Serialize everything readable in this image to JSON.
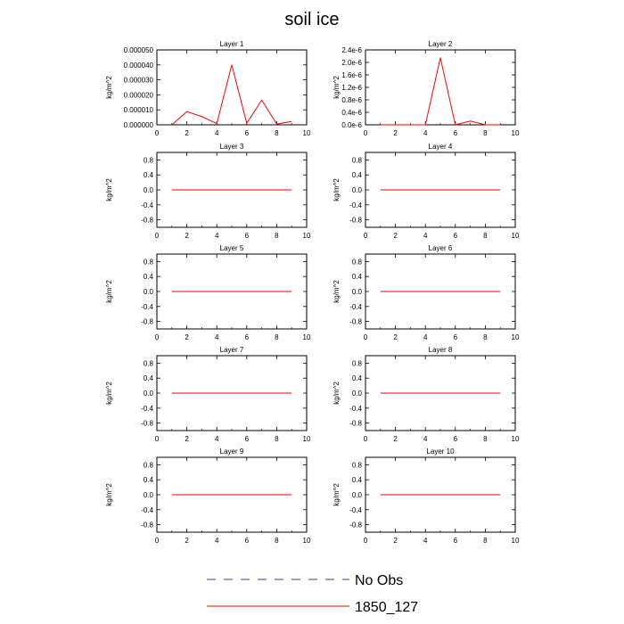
{
  "title": "soil ice",
  "chart_data": [
    {
      "type": "line",
      "title": "Layer 1",
      "ylabel": "kg/m^2",
      "xlim": [
        0,
        10
      ],
      "xticks": [
        0,
        2,
        4,
        6,
        8,
        10
      ],
      "ylim": [
        0,
        5e-05
      ],
      "yticks": [
        0,
        1e-05,
        2e-05,
        3e-05,
        4e-05,
        5e-05
      ],
      "ytick_labels": [
        "0.000000",
        "0.000010",
        "0.000020",
        "0.000030",
        "0.000040",
        "0.000050"
      ],
      "series": [
        {
          "name": "1850_127",
          "color": "#ff0000",
          "x": [
            1,
            2,
            3,
            4,
            5,
            6,
            7,
            8,
            9
          ],
          "y": [
            0,
            8.8e-06,
            5.5e-06,
            8e-07,
            4e-05,
            1e-06,
            1.65e-05,
            5e-07,
            2.2e-06
          ]
        }
      ]
    },
    {
      "type": "line",
      "title": "Layer 2",
      "ylabel": "kg/m^2",
      "xlim": [
        0,
        10
      ],
      "xticks": [
        0,
        2,
        4,
        6,
        8,
        10
      ],
      "ylim": [
        0,
        2.4e-06
      ],
      "yticks": [
        0,
        4e-07,
        8e-07,
        1.2e-06,
        1.6e-06,
        2e-06,
        2.4e-06
      ],
      "ytick_labels": [
        "0.0e-6",
        "0.4e-6",
        "0.8e-6",
        "1.2e-6",
        "1.6e-6",
        "2.0e-6",
        "2.4e-6"
      ],
      "series": [
        {
          "name": "1850_127",
          "color": "#ff0000",
          "x": [
            1,
            2,
            3,
            4,
            5,
            6,
            7,
            8,
            9
          ],
          "y": [
            0,
            0,
            0,
            0,
            2.15e-06,
            0,
            1.2e-07,
            0,
            0
          ]
        }
      ]
    },
    {
      "type": "line",
      "title": "Layer 3",
      "ylabel": "kg/m^2",
      "xlim": [
        0,
        10
      ],
      "xticks": [
        0,
        2,
        4,
        6,
        8,
        10
      ],
      "ylim": [
        -1,
        1
      ],
      "yticks": [
        -0.8,
        -0.4,
        0,
        0.4,
        0.8
      ],
      "ytick_labels": [
        "-0.8",
        "-0.4",
        "0.0",
        "0.4",
        "0.8"
      ],
      "series": [
        {
          "name": "1850_127",
          "color": "#ff0000",
          "x": [
            1,
            2,
            3,
            4,
            5,
            6,
            7,
            8,
            9
          ],
          "y": [
            0,
            0,
            0,
            0,
            0,
            0,
            0,
            0,
            0
          ]
        }
      ]
    },
    {
      "type": "line",
      "title": "Layer 4",
      "ylabel": "kg/m^2",
      "xlim": [
        0,
        10
      ],
      "xticks": [
        0,
        2,
        4,
        6,
        8,
        10
      ],
      "ylim": [
        -1,
        1
      ],
      "yticks": [
        -0.8,
        -0.4,
        0,
        0.4,
        0.8
      ],
      "ytick_labels": [
        "-0.8",
        "-0.4",
        "0.0",
        "0.4",
        "0.8"
      ],
      "series": [
        {
          "name": "1850_127",
          "color": "#ff0000",
          "x": [
            1,
            2,
            3,
            4,
            5,
            6,
            7,
            8,
            9
          ],
          "y": [
            0,
            0,
            0,
            0,
            0,
            0,
            0,
            0,
            0
          ]
        }
      ]
    },
    {
      "type": "line",
      "title": "Layer 5",
      "ylabel": "kg/m^2",
      "xlim": [
        0,
        10
      ],
      "xticks": [
        0,
        2,
        4,
        6,
        8,
        10
      ],
      "ylim": [
        -1,
        1
      ],
      "yticks": [
        -0.8,
        -0.4,
        0,
        0.4,
        0.8
      ],
      "ytick_labels": [
        "-0.8",
        "-0.4",
        "0.0",
        "0.4",
        "0.8"
      ],
      "series": [
        {
          "name": "1850_127",
          "color": "#ff0000",
          "x": [
            1,
            2,
            3,
            4,
            5,
            6,
            7,
            8,
            9
          ],
          "y": [
            0,
            0,
            0,
            0,
            0,
            0,
            0,
            0,
            0
          ]
        }
      ]
    },
    {
      "type": "line",
      "title": "Layer 6",
      "ylabel": "kg/m^2",
      "xlim": [
        0,
        10
      ],
      "xticks": [
        0,
        2,
        4,
        6,
        8,
        10
      ],
      "ylim": [
        -1,
        1
      ],
      "yticks": [
        -0.8,
        -0.4,
        0,
        0.4,
        0.8
      ],
      "ytick_labels": [
        "-0.8",
        "-0.4",
        "0.0",
        "0.4",
        "0.8"
      ],
      "series": [
        {
          "name": "1850_127",
          "color": "#ff0000",
          "x": [
            1,
            2,
            3,
            4,
            5,
            6,
            7,
            8,
            9
          ],
          "y": [
            0,
            0,
            0,
            0,
            0,
            0,
            0,
            0,
            0
          ]
        }
      ]
    },
    {
      "type": "line",
      "title": "Layer 7",
      "ylabel": "kg/m^2",
      "xlim": [
        0,
        10
      ],
      "xticks": [
        0,
        2,
        4,
        6,
        8,
        10
      ],
      "ylim": [
        -1,
        1
      ],
      "yticks": [
        -0.8,
        -0.4,
        0,
        0.4,
        0.8
      ],
      "ytick_labels": [
        "-0.8",
        "-0.4",
        "0.0",
        "0.4",
        "0.8"
      ],
      "series": [
        {
          "name": "1850_127",
          "color": "#ff0000",
          "x": [
            1,
            2,
            3,
            4,
            5,
            6,
            7,
            8,
            9
          ],
          "y": [
            0,
            0,
            0,
            0,
            0,
            0,
            0,
            0,
            0
          ]
        }
      ]
    },
    {
      "type": "line",
      "title": "Layer 8",
      "ylabel": "kg/m^2",
      "xlim": [
        0,
        10
      ],
      "xticks": [
        0,
        2,
        4,
        6,
        8,
        10
      ],
      "ylim": [
        -1,
        1
      ],
      "yticks": [
        -0.8,
        -0.4,
        0,
        0.4,
        0.8
      ],
      "ytick_labels": [
        "-0.8",
        "-0.4",
        "0.0",
        "0.4",
        "0.8"
      ],
      "series": [
        {
          "name": "1850_127",
          "color": "#ff0000",
          "x": [
            1,
            2,
            3,
            4,
            5,
            6,
            7,
            8,
            9
          ],
          "y": [
            0,
            0,
            0,
            0,
            0,
            0,
            0,
            0,
            0
          ]
        }
      ]
    },
    {
      "type": "line",
      "title": "Layer 9",
      "ylabel": "kg/m^2",
      "xlim": [
        0,
        10
      ],
      "xticks": [
        0,
        2,
        4,
        6,
        8,
        10
      ],
      "ylim": [
        -1,
        1
      ],
      "yticks": [
        -0.8,
        -0.4,
        0,
        0.4,
        0.8
      ],
      "ytick_labels": [
        "-0.8",
        "-0.4",
        "0.0",
        "0.4",
        "0.8"
      ],
      "series": [
        {
          "name": "1850_127",
          "color": "#ff0000",
          "x": [
            1,
            2,
            3,
            4,
            5,
            6,
            7,
            8,
            9
          ],
          "y": [
            0,
            0,
            0,
            0,
            0,
            0,
            0,
            0,
            0
          ]
        }
      ]
    },
    {
      "type": "line",
      "title": "Layer 10",
      "ylabel": "kg/m^2",
      "xlim": [
        0,
        10
      ],
      "xticks": [
        0,
        2,
        4,
        6,
        8,
        10
      ],
      "ylim": [
        -1,
        1
      ],
      "yticks": [
        -0.8,
        -0.4,
        0,
        0.4,
        0.8
      ],
      "ytick_labels": [
        "-0.8",
        "-0.4",
        "0.0",
        "0.4",
        "0.8"
      ],
      "series": [
        {
          "name": "1850_127",
          "color": "#ff0000",
          "x": [
            1,
            2,
            3,
            4,
            5,
            6,
            7,
            8,
            9
          ],
          "y": [
            0,
            0,
            0,
            0,
            0,
            0,
            0,
            0,
            0
          ]
        }
      ]
    }
  ],
  "legend": {
    "placement": "bottom-center",
    "entries": [
      {
        "label": "No Obs",
        "color": "#3a3aa0",
        "style": "dashed"
      },
      {
        "label": "1850_127",
        "color": "#ff0000",
        "style": "solid"
      }
    ]
  }
}
